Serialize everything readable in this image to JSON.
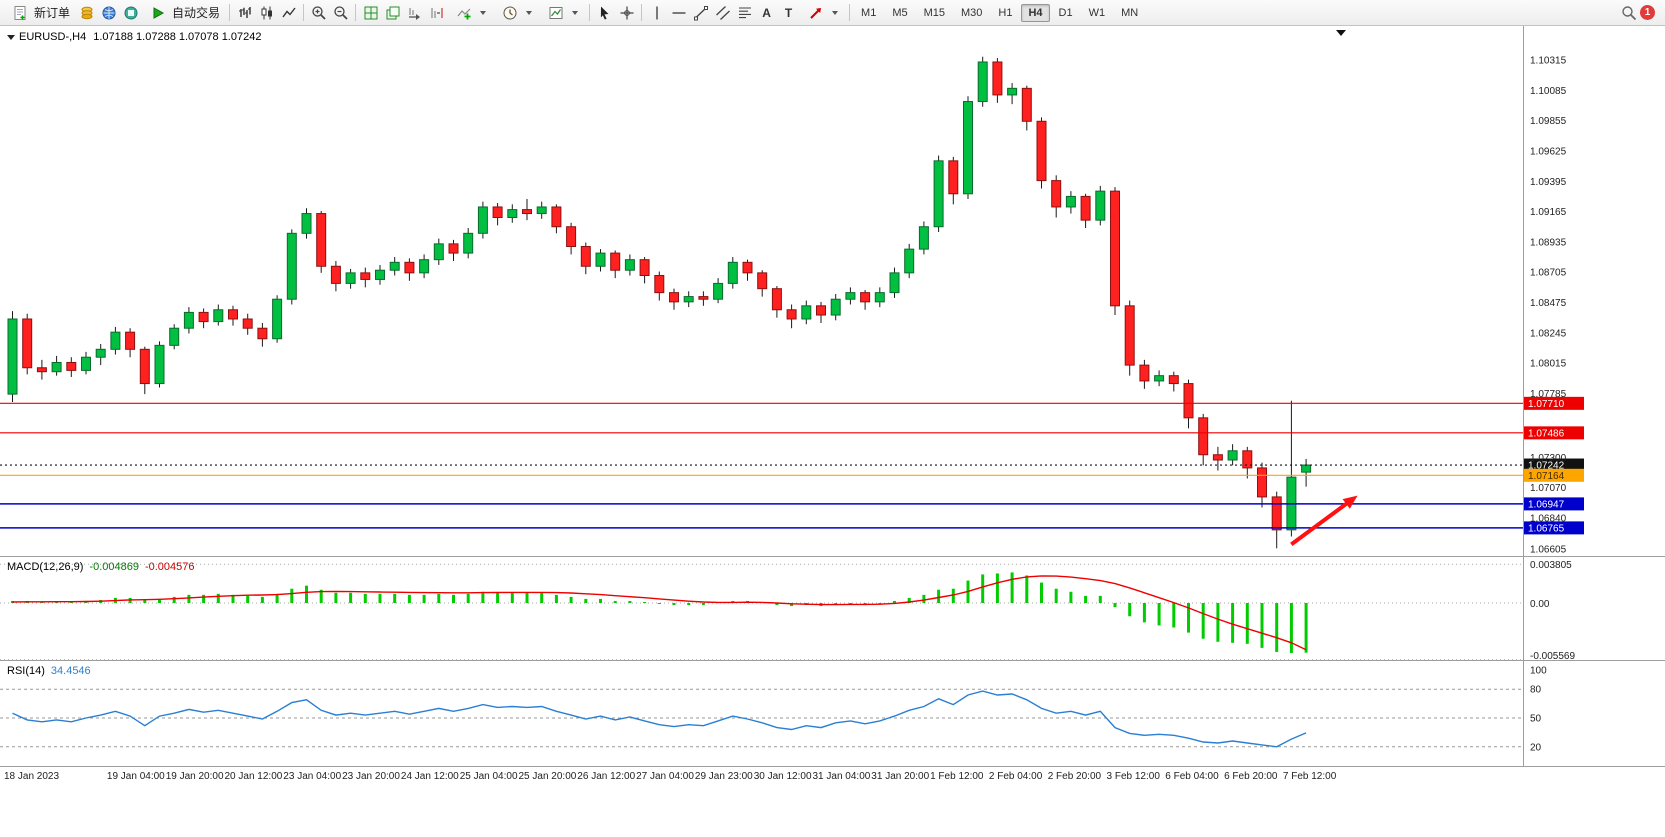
{
  "toolbar": {
    "new_order_label": "新订单",
    "autotrade_label": "自动交易",
    "text_tool_label": "A",
    "label_tool_label": "T",
    "timeframes": [
      "M1",
      "M5",
      "M15",
      "M30",
      "H1",
      "H4",
      "D1",
      "W1",
      "MN"
    ],
    "active_timeframe": "H4",
    "notification_count": "1"
  },
  "chart": {
    "symbol_period": "EURUSD-,H4",
    "ohlc_line": "1.07188 1.07288 1.07078 1.07242",
    "macd_name": "MACD(12,26,9)",
    "macd_value_1": "-0.004869",
    "macd_value_2": "-0.004576",
    "rsi_name": "RSI(14)",
    "rsi_value": "34.4546"
  },
  "chart_data": {
    "type": "candlestick",
    "symbol": "EURUSD",
    "period": "H4",
    "ohlc_display": {
      "open": "1.07188",
      "high": "1.07288",
      "low": "1.07078",
      "close": "1.07242"
    },
    "candles": [
      [
        1.0778,
        1.0841,
        1.0772,
        1.0835
      ],
      [
        1.0835,
        1.0839,
        1.0793,
        1.0798
      ],
      [
        1.0798,
        1.0804,
        1.0789,
        1.0795
      ],
      [
        1.0795,
        1.0807,
        1.0792,
        1.0802
      ],
      [
        1.0802,
        1.0806,
        1.0791,
        1.0796
      ],
      [
        1.0796,
        1.081,
        1.0793,
        1.0806
      ],
      [
        1.0806,
        1.0816,
        1.08,
        1.0812
      ],
      [
        1.0812,
        1.0829,
        1.0808,
        1.0825
      ],
      [
        1.0825,
        1.0828,
        1.0806,
        1.0812
      ],
      [
        1.0812,
        1.0814,
        1.0778,
        1.0786
      ],
      [
        1.0786,
        1.0818,
        1.0783,
        1.0815
      ],
      [
        1.0815,
        1.0831,
        1.0812,
        1.0828
      ],
      [
        1.0828,
        1.0844,
        1.0824,
        1.084
      ],
      [
        1.084,
        1.0843,
        1.0828,
        1.0833
      ],
      [
        1.0833,
        1.0846,
        1.083,
        1.0842
      ],
      [
        1.0842,
        1.0845,
        1.083,
        1.0835
      ],
      [
        1.0835,
        1.0839,
        1.0823,
        1.0828
      ],
      [
        1.0828,
        1.0832,
        1.0814,
        1.082
      ],
      [
        1.082,
        1.0853,
        1.0817,
        1.085
      ],
      [
        1.085,
        1.0903,
        1.0846,
        1.09
      ],
      [
        1.09,
        1.0919,
        1.0896,
        1.0915
      ],
      [
        1.0915,
        1.0917,
        1.087,
        1.0875
      ],
      [
        1.0875,
        1.0879,
        1.0856,
        1.0862
      ],
      [
        1.0862,
        1.0873,
        1.0858,
        1.087
      ],
      [
        1.087,
        1.0874,
        1.0859,
        1.0865
      ],
      [
        1.0865,
        1.0876,
        1.0861,
        1.0872
      ],
      [
        1.0872,
        1.0882,
        1.0868,
        1.0878
      ],
      [
        1.0878,
        1.0881,
        1.0864,
        1.087
      ],
      [
        1.087,
        1.0884,
        1.0866,
        1.088
      ],
      [
        1.088,
        1.0896,
        1.0876,
        1.0892
      ],
      [
        1.0892,
        1.0895,
        1.0879,
        1.0885
      ],
      [
        1.0885,
        1.0904,
        1.0881,
        1.09
      ],
      [
        1.09,
        1.0924,
        1.0896,
        1.092
      ],
      [
        1.092,
        1.0923,
        1.0906,
        1.0912
      ],
      [
        1.0912,
        1.0922,
        1.0908,
        1.0918
      ],
      [
        1.0918,
        1.0926,
        1.091,
        1.0915
      ],
      [
        1.0915,
        1.0924,
        1.0911,
        1.092
      ],
      [
        1.092,
        1.0922,
        1.09,
        1.0905
      ],
      [
        1.0905,
        1.0908,
        1.0884,
        1.089
      ],
      [
        1.089,
        1.0893,
        1.0869,
        1.0875
      ],
      [
        1.0875,
        1.0888,
        1.0871,
        1.0885
      ],
      [
        1.0885,
        1.0887,
        1.0866,
        1.0872
      ],
      [
        1.0872,
        1.0884,
        1.0868,
        1.088
      ],
      [
        1.088,
        1.0882,
        1.0862,
        1.0868
      ],
      [
        1.0868,
        1.0871,
        1.0849,
        1.0855
      ],
      [
        1.0855,
        1.0858,
        1.0842,
        1.0848
      ],
      [
        1.0848,
        1.0856,
        1.0844,
        1.0852
      ],
      [
        1.0852,
        1.0856,
        1.0845,
        1.085
      ],
      [
        1.085,
        1.0866,
        1.0847,
        1.0862
      ],
      [
        1.0862,
        1.0882,
        1.0858,
        1.0878
      ],
      [
        1.0878,
        1.088,
        1.0864,
        1.087
      ],
      [
        1.087,
        1.0872,
        1.0852,
        1.0858
      ],
      [
        1.0858,
        1.086,
        1.0836,
        1.0842
      ],
      [
        1.0842,
        1.0846,
        1.0828,
        1.0835
      ],
      [
        1.0835,
        1.0849,
        1.0831,
        1.0845
      ],
      [
        1.0845,
        1.0848,
        1.0832,
        1.0838
      ],
      [
        1.0838,
        1.0854,
        1.0834,
        1.085
      ],
      [
        1.085,
        1.0859,
        1.0846,
        1.0855
      ],
      [
        1.0855,
        1.0857,
        1.0842,
        1.0848
      ],
      [
        1.0848,
        1.0859,
        1.0844,
        1.0855
      ],
      [
        1.0855,
        1.0874,
        1.0851,
        1.087
      ],
      [
        1.087,
        1.0892,
        1.0866,
        1.0888
      ],
      [
        1.0888,
        1.0909,
        1.0884,
        1.0905
      ],
      [
        1.0905,
        1.0959,
        1.0901,
        1.0955
      ],
      [
        1.0955,
        1.0958,
        1.0922,
        1.093
      ],
      [
        1.093,
        1.1004,
        1.0926,
        1.1
      ],
      [
        1.1,
        1.1034,
        1.0996,
        1.103
      ],
      [
        1.103,
        1.1033,
        1.0999,
        1.1005
      ],
      [
        1.1005,
        1.1014,
        1.0998,
        1.101
      ],
      [
        1.101,
        1.1012,
        1.0978,
        1.0985
      ],
      [
        1.0985,
        1.0988,
        1.0934,
        1.094
      ],
      [
        1.094,
        1.0944,
        1.0912,
        1.092
      ],
      [
        1.092,
        1.0932,
        1.0915,
        1.0928
      ],
      [
        1.0928,
        1.093,
        1.0904,
        1.091
      ],
      [
        1.091,
        1.0936,
        1.0906,
        1.0932
      ],
      [
        1.0932,
        1.0935,
        1.0838,
        1.0845
      ],
      [
        1.0845,
        1.0849,
        1.0792,
        1.08
      ],
      [
        1.08,
        1.0804,
        1.0782,
        1.0788
      ],
      [
        1.0788,
        1.0796,
        1.0784,
        1.0792
      ],
      [
        1.0792,
        1.0795,
        1.078,
        1.0786
      ],
      [
        1.0786,
        1.0789,
        1.0752,
        1.076
      ],
      [
        1.076,
        1.0763,
        1.0724,
        1.0732
      ],
      [
        1.0732,
        1.0738,
        1.072,
        1.0728
      ],
      [
        1.0728,
        1.074,
        1.0724,
        1.0735
      ],
      [
        1.0735,
        1.0738,
        1.0714,
        1.0722
      ],
      [
        1.0722,
        1.0726,
        1.0692,
        1.07
      ],
      [
        1.07,
        1.0704,
        1.0661,
        1.0675
      ],
      [
        1.0675,
        1.0773,
        1.067,
        1.0715
      ],
      [
        1.07188,
        1.07288,
        1.07078,
        1.07242
      ]
    ],
    "y_axis": {
      "tick_labels": [
        "1.10315",
        "1.10085",
        "1.09855",
        "1.09625",
        "1.09395",
        "1.09165",
        "1.08935",
        "1.08705",
        "1.08475",
        "1.08245",
        "1.08015",
        "1.07785",
        "1.07300",
        "1.07070",
        "1.06840",
        "1.06605"
      ],
      "tick_values": [
        1.10315,
        1.10085,
        1.09855,
        1.09625,
        1.09395,
        1.09165,
        1.08935,
        1.08705,
        1.08475,
        1.08245,
        1.08015,
        1.07785,
        1.073,
        1.0707,
        1.0684,
        1.06605
      ]
    },
    "price_lines": [
      {
        "price": 1.0771,
        "label": "1.07710",
        "color": "#ee0000",
        "style": "solid"
      },
      {
        "price": 1.07486,
        "label": "1.07486",
        "color": "#ee0000",
        "style": "solid"
      },
      {
        "price": 1.07242,
        "label": "1.07242",
        "color": "#111111",
        "style": "dotted"
      },
      {
        "price": 1.07164,
        "label": "1.07164",
        "color": "#ffa500",
        "style": "solid"
      },
      {
        "price": 1.06947,
        "label": "1.06947",
        "color": "#0000cc",
        "style": "solid"
      },
      {
        "price": 1.06765,
        "label": "1.06765",
        "color": "#0000cc",
        "style": "solid"
      }
    ],
    "time_labels": [
      {
        "i": 0,
        "label": "18 Jan 2023"
      },
      {
        "i": 7,
        "label": "19 Jan 04:00"
      },
      {
        "i": 11,
        "label": "19 Jan 20:00"
      },
      {
        "i": 15,
        "label": "20 Jan 12:00"
      },
      {
        "i": 19,
        "label": "23 Jan 04:00"
      },
      {
        "i": 23,
        "label": "23 Jan 20:00"
      },
      {
        "i": 27,
        "label": "24 Jan 12:00"
      },
      {
        "i": 31,
        "label": "25 Jan 04:00"
      },
      {
        "i": 35,
        "label": "25 Jan 20:00"
      },
      {
        "i": 39,
        "label": "26 Jan 12:00"
      },
      {
        "i": 43,
        "label": "27 Jan 04:00"
      },
      {
        "i": 47,
        "label": "29 Jan 23:00"
      },
      {
        "i": 51,
        "label": "30 Jan 12:00"
      },
      {
        "i": 55,
        "label": "31 Jan 04:00"
      },
      {
        "i": 59,
        "label": "31 Jan 20:00"
      },
      {
        "i": 63,
        "label": "1 Feb 12:00"
      },
      {
        "i": 67,
        "label": "2 Feb 04:00"
      },
      {
        "i": 71,
        "label": "2 Feb 20:00"
      },
      {
        "i": 75,
        "label": "3 Feb 12:00"
      },
      {
        "i": 79,
        "label": "6 Feb 04:00"
      },
      {
        "i": 83,
        "label": "6 Feb 20:00"
      },
      {
        "i": 87,
        "label": "7 Feb 12:00"
      }
    ],
    "indicators": {
      "macd": {
        "label": "MACD(12,26,9)",
        "main_value": -0.004869,
        "signal_value": -0.004576,
        "axis_labels": [
          "0.003805",
          "0.00",
          "-0.005569"
        ],
        "axis_values": [
          0.003805,
          0,
          -0.005569
        ],
        "histogram": [
          0.0002,
          0.0002,
          0.0001,
          0.0001,
          0.0001,
          0.0002,
          0.0003,
          0.0005,
          0.0005,
          0.0003,
          0.0004,
          0.0006,
          0.0008,
          0.0008,
          0.0009,
          0.0008,
          0.0007,
          0.0006,
          0.0009,
          0.0014,
          0.0017,
          0.0013,
          0.001,
          0.001,
          0.0009,
          0.0009,
          0.0009,
          0.0008,
          0.0008,
          0.0009,
          0.0008,
          0.0009,
          0.0011,
          0.001,
          0.001,
          0.001,
          0.001,
          0.0008,
          0.0006,
          0.0004,
          0.0004,
          0.0002,
          0.0002,
          0.0001,
          -0.0001,
          -0.0002,
          -0.0002,
          -0.0002,
          0.0,
          0.0002,
          0.0002,
          0.0,
          -0.0002,
          -0.0003,
          -0.0002,
          -0.0003,
          -0.0002,
          -0.0001,
          -0.0002,
          -0.0001,
          0.0002,
          0.0005,
          0.0008,
          0.0013,
          0.0014,
          0.0022,
          0.0028,
          0.0029,
          0.003,
          0.0027,
          0.002,
          0.0014,
          0.0011,
          0.0007,
          0.0007,
          -0.0004,
          -0.0013,
          -0.0019,
          -0.0022,
          -0.0024,
          -0.0029,
          -0.0035,
          -0.0038,
          -0.0039,
          -0.004,
          -0.0044,
          -0.0048,
          -0.0049,
          -0.004869
        ],
        "signal": [
          0.0001,
          0.00012,
          0.00012,
          0.00013,
          0.00013,
          0.00015,
          0.00018,
          0.00024,
          0.0003,
          0.00032,
          0.00036,
          0.00042,
          0.0005,
          0.00058,
          0.00066,
          0.00072,
          0.00076,
          0.00078,
          0.00082,
          0.00092,
          0.00105,
          0.00112,
          0.00113,
          0.00112,
          0.0011,
          0.00108,
          0.00106,
          0.00104,
          0.00102,
          0.00101,
          0.001,
          0.001,
          0.00102,
          0.00103,
          0.00104,
          0.00104,
          0.00104,
          0.00102,
          0.00098,
          0.0009,
          0.00082,
          0.00072,
          0.00062,
          0.00052,
          0.0004,
          0.00028,
          0.00018,
          0.0001,
          6e-05,
          6e-05,
          8e-05,
          6e-05,
          0.0,
          -8e-05,
          -0.00012,
          -0.00016,
          -0.00016,
          -0.00014,
          -0.00014,
          -0.00012,
          -4e-05,
          0.0001,
          0.00028,
          0.00054,
          0.00078,
          0.00114,
          0.00158,
          0.00198,
          0.00232,
          0.00256,
          0.00266,
          0.00264,
          0.00254,
          0.00238,
          0.0022,
          0.0019,
          0.00148,
          0.001,
          0.00052,
          4e-05,
          -0.00048,
          -0.00104,
          -0.00158,
          -0.00208,
          -0.00252,
          -0.00296,
          -0.0034,
          -0.0039,
          -0.004576
        ]
      },
      "rsi": {
        "label": "RSI(14)",
        "value": 34.4546,
        "axis_labels": [
          "100",
          "80",
          "50",
          "20"
        ],
        "axis_values": [
          100,
          80,
          50,
          20
        ],
        "levels": [
          80,
          50,
          20
        ],
        "series": [
          55,
          48,
          46,
          48,
          46,
          50,
          53,
          57,
          52,
          42,
          52,
          55,
          59,
          56,
          58,
          55,
          52,
          49,
          57,
          66,
          69,
          58,
          53,
          55,
          53,
          55,
          57,
          54,
          57,
          60,
          57,
          60,
          64,
          61,
          62,
          61,
          62,
          57,
          53,
          49,
          52,
          48,
          51,
          47,
          43,
          41,
          43,
          42,
          47,
          52,
          49,
          45,
          40,
          38,
          42,
          40,
          45,
          47,
          44,
          47,
          52,
          58,
          62,
          70,
          64,
          74,
          78,
          74,
          75,
          69,
          60,
          55,
          57,
          53,
          57,
          40,
          34,
          32,
          33,
          32,
          29,
          25,
          24,
          26,
          24,
          22,
          20,
          28,
          34.4546
        ]
      }
    },
    "annotation_arrow": {
      "from_index": 87.3,
      "from_price": 1.0664,
      "to_index": 91.8,
      "to_price": 1.0701,
      "color": "#ff1111"
    }
  }
}
